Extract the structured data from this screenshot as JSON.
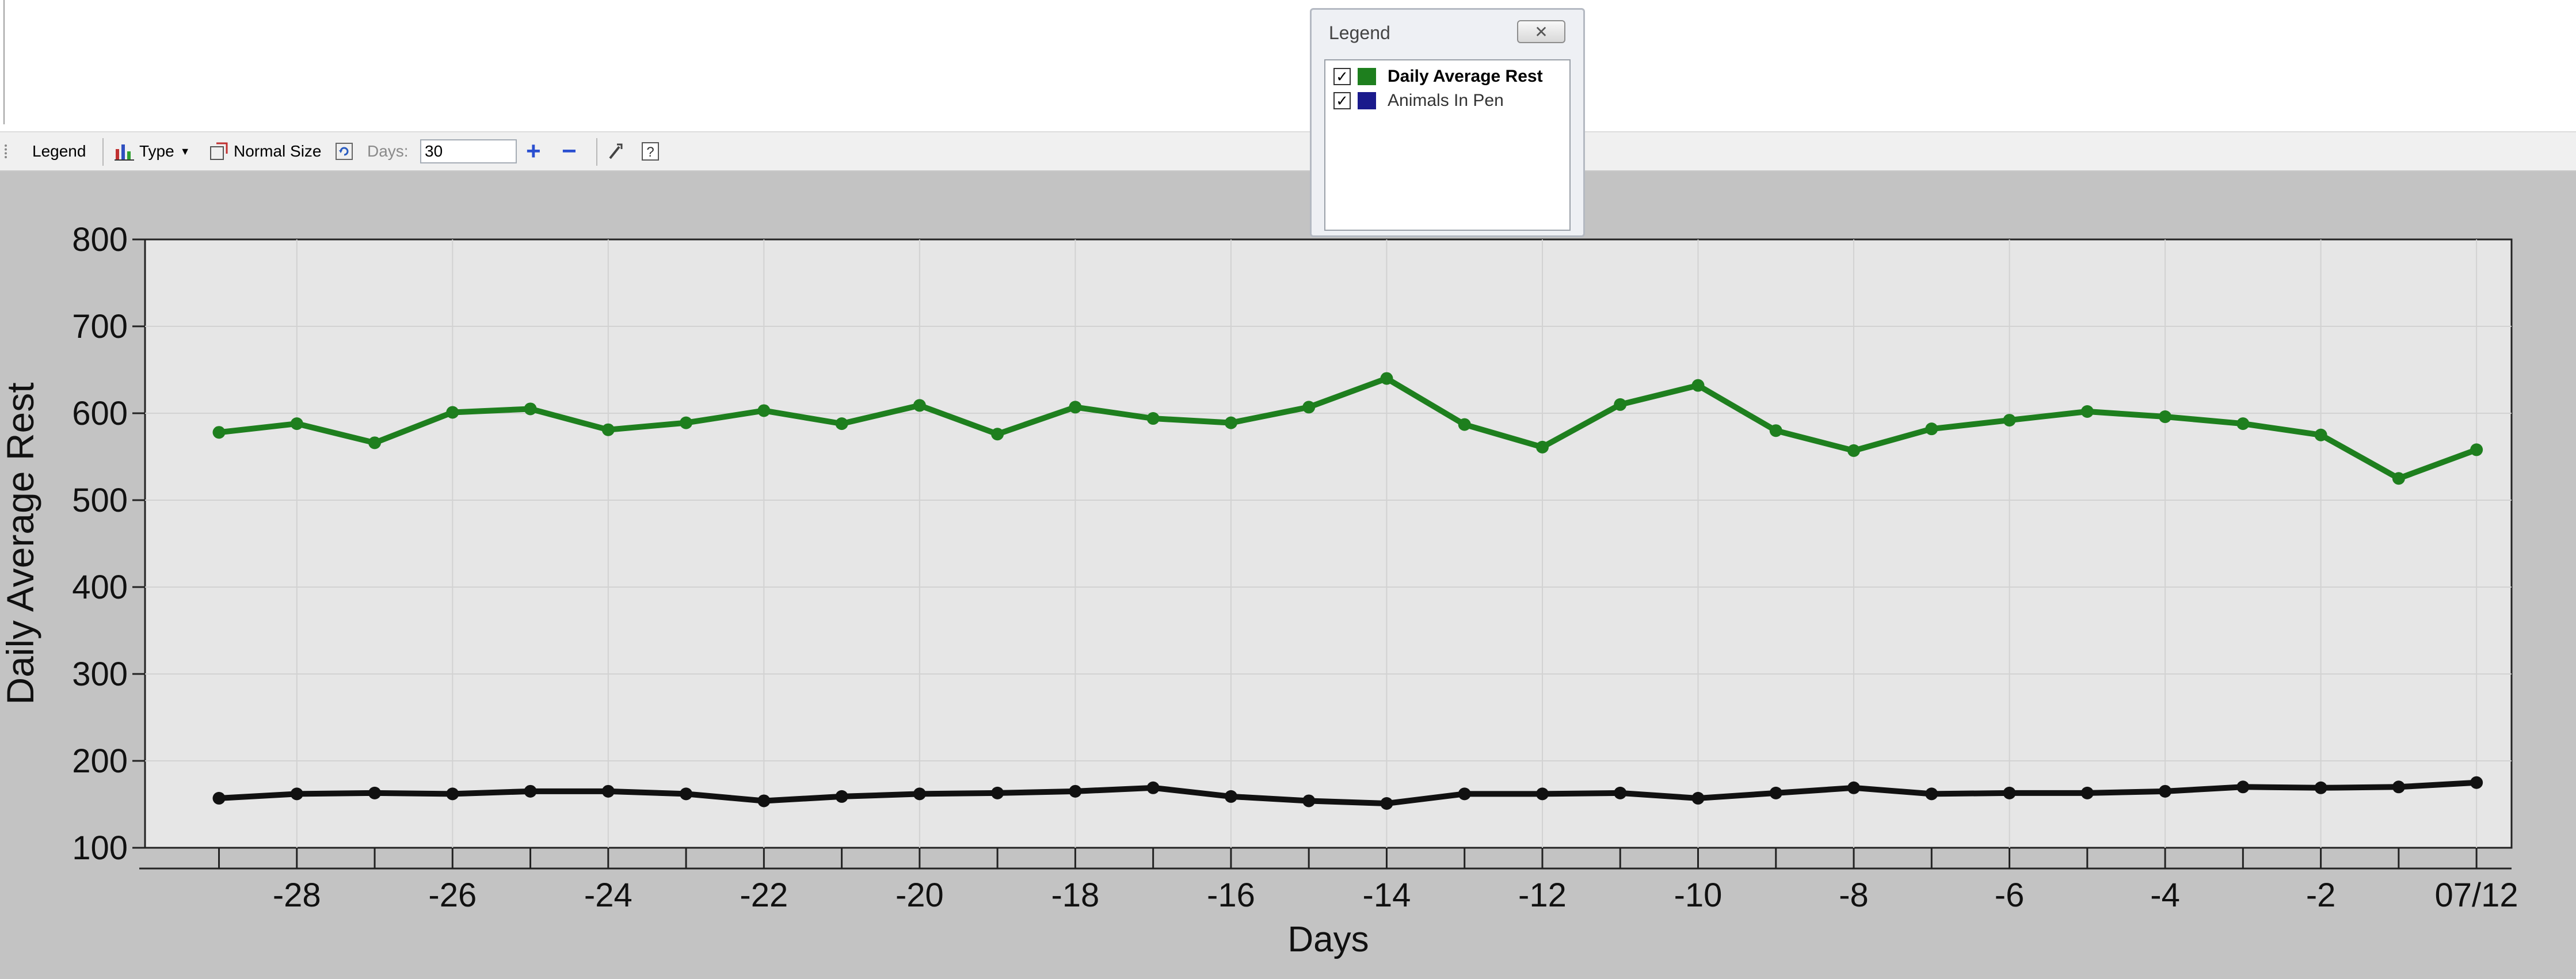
{
  "toolbar": {
    "legend_label": "Legend",
    "type_label": "Type",
    "normal_size_label": "Normal Size",
    "days_label": "Days:",
    "days_value": "30",
    "plus_glyph": "+",
    "minus_glyph": "−"
  },
  "legend": {
    "title": "Legend",
    "close_glyph": "✕",
    "items": [
      {
        "label": "Daily Average Rest",
        "color": "#1e7f1e",
        "checked": true
      },
      {
        "label": "Animals In Pen",
        "color": "#1a1a8c",
        "checked": true
      }
    ]
  },
  "colors": {
    "rest_line": "#1e7f1e",
    "pen_line": "#111111",
    "plot_bg": "#e6e6e6",
    "outer_bg": "#c3c3c3"
  },
  "chart_data": {
    "type": "line",
    "ylabel": "Daily Average Rest",
    "xlabel": "Days",
    "ylim": [
      100,
      800
    ],
    "yticks": [
      "100",
      "200",
      "300",
      "400",
      "500",
      "600",
      "700",
      "800"
    ],
    "xlim": [
      -29.95,
      0.45
    ],
    "xticks": [
      {
        "x": -28,
        "label": "-28"
      },
      {
        "x": -26,
        "label": "-26"
      },
      {
        "x": -24,
        "label": "-24"
      },
      {
        "x": -22,
        "label": "-22"
      },
      {
        "x": -20,
        "label": "-20"
      },
      {
        "x": -18,
        "label": "-18"
      },
      {
        "x": -16,
        "label": "-16"
      },
      {
        "x": -14,
        "label": "-14"
      },
      {
        "x": -12,
        "label": "-12"
      },
      {
        "x": -10,
        "label": "-10"
      },
      {
        "x": -8,
        "label": "-8"
      },
      {
        "x": -6,
        "label": "-6"
      },
      {
        "x": -4,
        "label": "-4"
      },
      {
        "x": -2,
        "label": "-2"
      },
      {
        "x": 0,
        "label": "07/12"
      }
    ],
    "grid": true,
    "x": [
      -29,
      -28,
      -27,
      -26,
      -25,
      -24,
      -23,
      -22,
      -21,
      -20,
      -19,
      -18,
      -17,
      -16,
      -15,
      -14,
      -13,
      -12,
      -11,
      -10,
      -9,
      -8,
      -7,
      -6,
      -5,
      -4,
      -3,
      -2,
      -1,
      0
    ],
    "series": [
      {
        "values": [
          578,
          588,
          566,
          601,
          605,
          581,
          589,
          603,
          588,
          609,
          576,
          607,
          594,
          589,
          607,
          640,
          587,
          561,
          610,
          632,
          580,
          557,
          582,
          592,
          602,
          596,
          588,
          575,
          525,
          558
        ]
      },
      {
        "values": [
          157,
          162,
          163,
          162,
          165,
          165,
          162,
          154,
          159,
          162,
          163,
          165,
          169,
          159,
          154,
          151,
          162,
          162,
          163,
          157,
          163,
          169,
          162,
          163,
          163,
          165,
          170,
          169,
          170,
          175
        ]
      }
    ]
  }
}
